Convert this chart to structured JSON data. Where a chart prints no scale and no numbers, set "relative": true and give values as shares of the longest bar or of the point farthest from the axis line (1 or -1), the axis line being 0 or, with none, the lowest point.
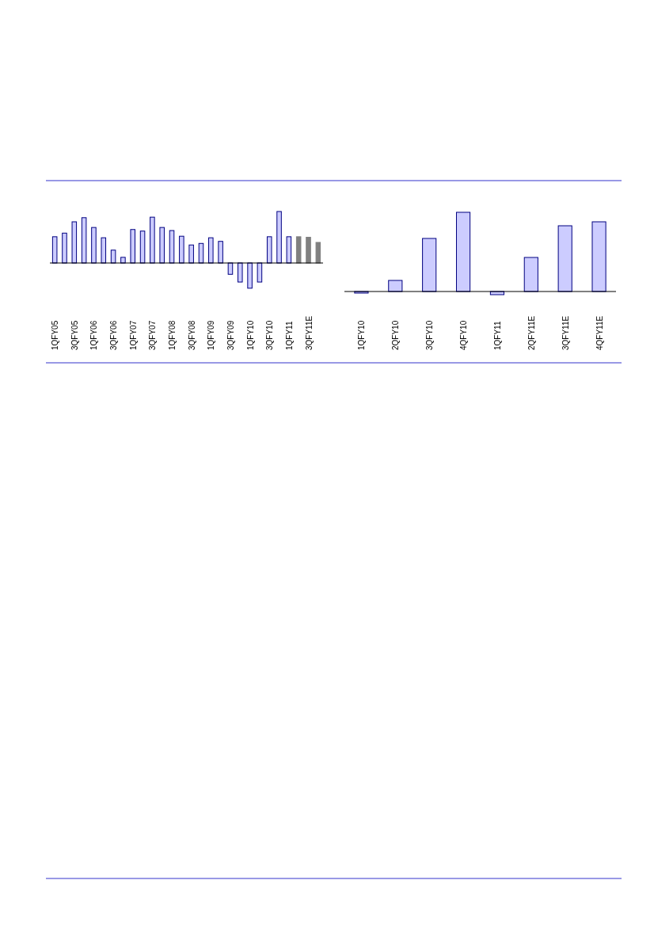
{
  "chart_data": [
    {
      "type": "bar",
      "relative": true,
      "categories": [
        "1QFY05",
        null,
        "3QFY05",
        null,
        "1QFY06",
        null,
        "3QFY06",
        null,
        "1QFY07",
        null,
        "3QFY07",
        null,
        "1QFY08",
        null,
        "3QFY08",
        null,
        "1QFY09",
        null,
        "3QFY09",
        null,
        "1QFY10",
        null,
        "3QFY10",
        null,
        "1QFY11",
        null,
        "3QFY11E",
        null
      ],
      "values": [
        0.51,
        0.58,
        0.8,
        0.88,
        0.69,
        0.49,
        0.25,
        0.11,
        0.65,
        0.62,
        0.89,
        0.69,
        0.63,
        0.52,
        0.35,
        0.38,
        0.49,
        0.42,
        -0.22,
        -0.37,
        -0.49,
        -0.37,
        0.51,
        1,
        0.51,
        0.51,
        0.5,
        0.4
      ],
      "colors": [
        "#ccccff",
        "#ccccff",
        "#ccccff",
        "#ccccff",
        "#ccccff",
        "#ccccff",
        "#ccccff",
        "#ccccff",
        "#ccccff",
        "#ccccff",
        "#ccccff",
        "#ccccff",
        "#ccccff",
        "#ccccff",
        "#ccccff",
        "#ccccff",
        "#ccccff",
        "#ccccff",
        "#ccccff",
        "#ccccff",
        "#ccccff",
        "#ccccff",
        "#ccccff",
        "#ccccff",
        "#ccccff",
        "#808080",
        "#808080",
        "#808080"
      ]
    },
    {
      "type": "bar",
      "relative": true,
      "categories": [
        "1QFY10",
        "2QFY10",
        "3QFY10",
        "4QFY10",
        "1QFY11",
        "2QFY11E",
        "3QFY11E",
        "4QFY11E"
      ],
      "values": [
        -0.02,
        0.14,
        0.67,
        1,
        -0.04,
        0.43,
        0.83,
        0.88
      ],
      "color": "#ccccff"
    }
  ]
}
